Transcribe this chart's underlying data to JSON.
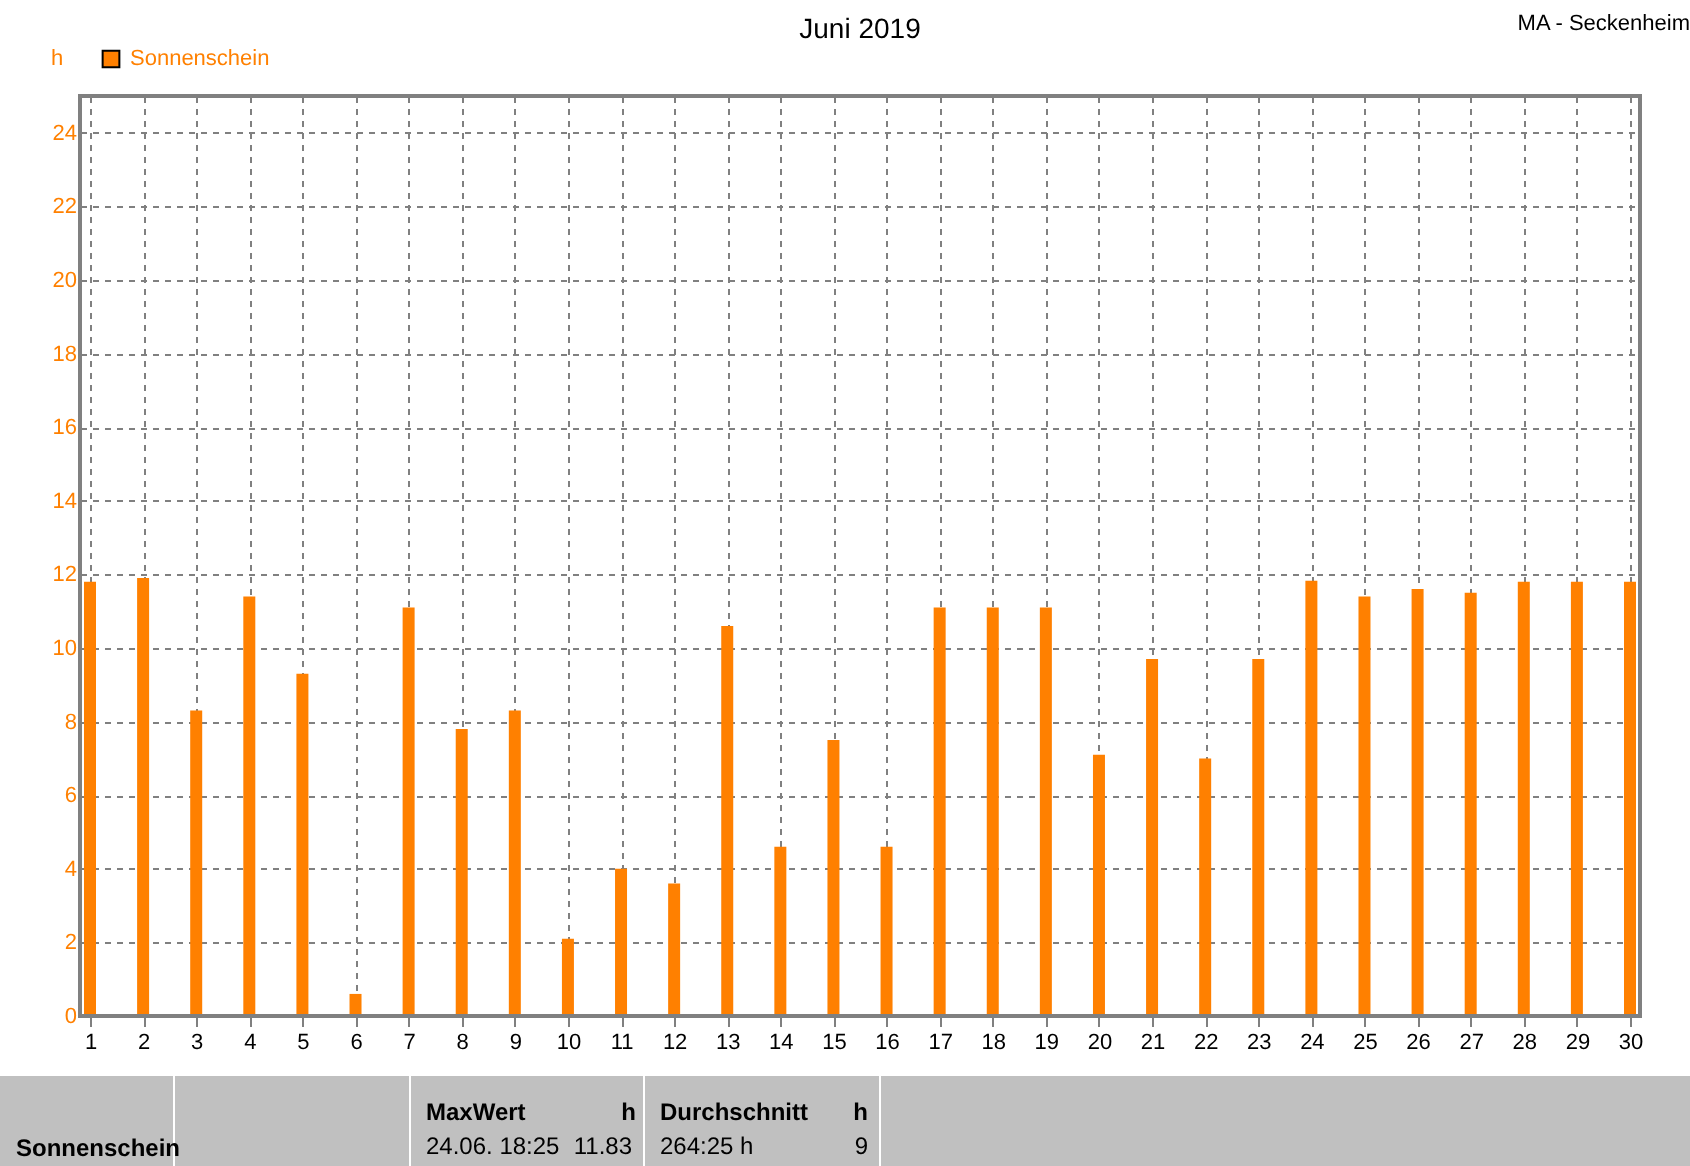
{
  "chart_data": {
    "type": "bar",
    "title": "Juni 2019",
    "ylabel": "h",
    "x": [
      1,
      2,
      3,
      4,
      5,
      6,
      7,
      8,
      9,
      10,
      11,
      12,
      13,
      14,
      15,
      16,
      17,
      18,
      19,
      20,
      21,
      22,
      23,
      24,
      25,
      26,
      27,
      28,
      29,
      30
    ],
    "series": [
      {
        "name": "Sonnenschein",
        "color": "#ff8000",
        "values": [
          11.8,
          11.9,
          8.3,
          11.4,
          9.3,
          0.6,
          11.1,
          7.8,
          8.3,
          2.1,
          4.0,
          3.6,
          10.6,
          4.6,
          7.5,
          4.6,
          11.1,
          11.1,
          11.1,
          7.1,
          9.7,
          7.0,
          9.7,
          11.83,
          11.4,
          11.6,
          11.5,
          11.8,
          11.8,
          11.8
        ]
      }
    ],
    "xlim": [
      1,
      30
    ],
    "xticks": [
      1,
      2,
      3,
      4,
      5,
      6,
      7,
      8,
      9,
      10,
      11,
      12,
      13,
      14,
      15,
      16,
      17,
      18,
      19,
      20,
      21,
      22,
      23,
      24,
      25,
      26,
      27,
      28,
      29,
      30
    ],
    "ylim": [
      0,
      25
    ],
    "yticks": [
      0,
      2,
      4,
      6,
      8,
      10,
      12,
      14,
      16,
      18,
      20,
      22,
      24
    ],
    "grid": true,
    "legend": "top left",
    "annotations": [
      "MA - Seckenheim",
      "Sonnenschein",
      "MaxWert",
      "h",
      "24.06.  18:25",
      "11.83",
      "Durchschnitt",
      "h",
      "264:25 h",
      "9"
    ]
  }
}
